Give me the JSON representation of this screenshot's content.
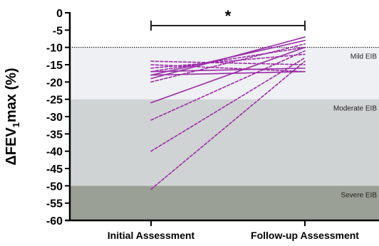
{
  "chart_data": {
    "type": "line",
    "ylabel": {
      "prefix": "ΔFEV",
      "sub": "1",
      "suffix": "max (%)"
    },
    "xlabel": "",
    "categories": [
      "Initial Assessment",
      "Follow-up Assessment"
    ],
    "ylim": [
      -60,
      0
    ],
    "yticks": [
      0,
      -5,
      -10,
      -15,
      -20,
      -25,
      -30,
      -35,
      -40,
      -45,
      -50,
      -55,
      -60
    ],
    "threshold": -10,
    "bands": [
      {
        "label": "Mild EIB",
        "from": -10,
        "to": -25,
        "color": "#eef0f4"
      },
      {
        "label": "Moderate EIB",
        "from": -25,
        "to": -50,
        "color": "#d0d3d3"
      },
      {
        "label": "Severe EIB",
        "from": -50,
        "to": -60,
        "color": "#9aa096"
      }
    ],
    "significance": {
      "label": "*"
    },
    "series_color": "#9b2ca6",
    "series": [
      {
        "values": [
          -19,
          -7
        ],
        "style": "solid"
      },
      {
        "values": [
          -18,
          -8
        ],
        "style": "solid"
      },
      {
        "values": [
          -20,
          -9
        ],
        "style": "dashed"
      },
      {
        "values": [
          -17,
          -10
        ],
        "style": "dashed"
      },
      {
        "values": [
          -26,
          -10
        ],
        "style": "solid"
      },
      {
        "values": [
          -14,
          -15
        ],
        "style": "dashed"
      },
      {
        "values": [
          -15,
          -17
        ],
        "style": "dashed"
      },
      {
        "values": [
          -16,
          -12
        ],
        "style": "dashed"
      },
      {
        "values": [
          -17,
          -16
        ],
        "style": "solid"
      },
      {
        "values": [
          -18,
          -17
        ],
        "style": "solid"
      },
      {
        "values": [
          -31,
          -11
        ],
        "style": "dashed"
      },
      {
        "values": [
          -40,
          -13
        ],
        "style": "dashed"
      },
      {
        "values": [
          -51,
          -14
        ],
        "style": "dashed"
      }
    ]
  }
}
